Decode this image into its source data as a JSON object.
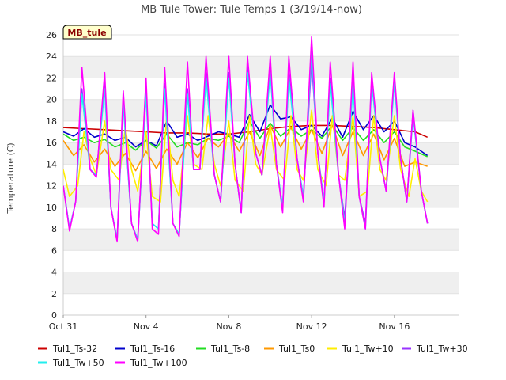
{
  "chart_data": {
    "type": "line",
    "title": "MB Tule Tower: Tule Temps 1 (3/19/14-now)",
    "ylabel": "Temperature (C)",
    "xlabel": "",
    "ylim": [
      0,
      26
    ],
    "yticks": [
      0,
      2,
      4,
      6,
      8,
      10,
      12,
      14,
      16,
      18,
      20,
      22,
      24,
      26
    ],
    "xlim": [
      0,
      19.1
    ],
    "xticks": [
      {
        "day": 0,
        "label": "Oct 31"
      },
      {
        "day": 4,
        "label": "Nov 4"
      },
      {
        "day": 8,
        "label": "Nov 8"
      },
      {
        "day": 12,
        "label": "Nov 12"
      },
      {
        "day": 16,
        "label": "Nov 16"
      }
    ],
    "x_unit_note": "",
    "site_tag": "MB_tule",
    "grid": "horizontal banded",
    "legend_position": "bottom",
    "series": [
      {
        "name": "Tul1_Ts-32",
        "color": "#cc0000",
        "x": [
          0,
          1,
          2,
          3,
          4,
          5,
          6,
          7,
          8,
          9,
          10,
          11,
          12,
          13,
          14,
          15,
          16,
          17,
          17.6
        ],
        "y": [
          17.4,
          17.3,
          17.2,
          17.1,
          17.0,
          16.9,
          16.9,
          16.8,
          16.8,
          17.0,
          17.3,
          17.5,
          17.6,
          17.6,
          17.5,
          17.4,
          17.2,
          17.0,
          16.5
        ]
      },
      {
        "name": "Tul1_Ts-16",
        "color": "#0000cc",
        "x": [
          0,
          0.5,
          1,
          1.5,
          2,
          2.5,
          3,
          3.5,
          4,
          4.5,
          5,
          5.5,
          6,
          6.5,
          7,
          7.5,
          8,
          8.5,
          9,
          9.5,
          10,
          10.5,
          11,
          11.5,
          12,
          12.5,
          13,
          13.5,
          14,
          14.5,
          15,
          15.5,
          16,
          16.5,
          17,
          17.6
        ],
        "y": [
          17.0,
          16.6,
          17.3,
          16.5,
          16.8,
          16.2,
          16.5,
          15.6,
          16.2,
          15.7,
          18.0,
          16.5,
          16.8,
          16.2,
          16.6,
          17.0,
          16.8,
          16.5,
          18.6,
          17.0,
          19.5,
          18.2,
          18.4,
          17.2,
          17.6,
          16.6,
          18.3,
          16.5,
          18.9,
          17.2,
          18.5,
          17.0,
          18.0,
          16.0,
          15.6,
          14.8
        ]
      },
      {
        "name": "Tul1_Ts-8",
        "color": "#22dd22",
        "x": [
          0,
          0.5,
          1,
          1.5,
          2,
          2.5,
          3,
          3.5,
          4,
          4.5,
          5,
          5.5,
          6,
          6.5,
          7,
          7.5,
          8,
          8.5,
          9,
          9.5,
          10,
          10.5,
          11,
          11.5,
          12,
          12.5,
          13,
          13.5,
          14,
          14.5,
          15,
          15.5,
          16,
          16.5,
          17,
          17.6
        ],
        "y": [
          16.8,
          16.2,
          16.5,
          16.0,
          16.3,
          15.6,
          16.0,
          15.3,
          16.2,
          15.5,
          16.8,
          15.6,
          16.0,
          15.8,
          16.4,
          16.2,
          16.6,
          16.0,
          18.0,
          16.4,
          17.8,
          16.6,
          17.4,
          16.6,
          17.2,
          16.4,
          17.6,
          16.2,
          17.4,
          16.2,
          17.2,
          16.0,
          17.0,
          15.6,
          15.2,
          14.7
        ]
      },
      {
        "name": "Tul1_Ts0",
        "color": "#ff9900",
        "x": [
          0,
          0.5,
          1,
          1.5,
          2,
          2.5,
          3,
          3.5,
          4,
          4.5,
          5,
          5.5,
          6,
          6.5,
          7,
          7.5,
          8,
          8.5,
          9,
          9.5,
          10,
          10.5,
          11,
          11.5,
          12,
          12.5,
          13,
          13.5,
          14,
          14.5,
          15,
          15.5,
          16,
          16.5,
          17,
          17.6
        ],
        "y": [
          16.2,
          14.8,
          15.8,
          14.2,
          15.4,
          13.8,
          15.0,
          13.4,
          15.2,
          13.6,
          15.4,
          14.0,
          16.0,
          14.6,
          16.4,
          15.6,
          16.8,
          15.2,
          17.0,
          14.8,
          17.6,
          15.6,
          17.4,
          15.4,
          17.2,
          15.0,
          17.6,
          14.8,
          17.0,
          14.8,
          16.8,
          14.4,
          16.4,
          13.8,
          14.2,
          13.8
        ]
      },
      {
        "name": "Tul1_Tw+10",
        "color": "#ffee00",
        "x": [
          0,
          0.3,
          0.7,
          1,
          1.3,
          1.6,
          2,
          2.3,
          2.7,
          3,
          3.3,
          3.6,
          4,
          4.3,
          4.7,
          5,
          5.3,
          5.6,
          6,
          6.3,
          6.7,
          7,
          7.3,
          7.6,
          8,
          8.3,
          8.7,
          9,
          9.3,
          9.6,
          10,
          10.3,
          10.7,
          11,
          11.3,
          11.6,
          12,
          12.3,
          12.7,
          13,
          13.3,
          13.6,
          14,
          14.3,
          14.7,
          15,
          15.3,
          15.6,
          16,
          16.3,
          16.7,
          17,
          17.3,
          17.6
        ],
        "y": [
          13.5,
          11.0,
          12.0,
          17.0,
          14.5,
          13.0,
          18.0,
          13.5,
          12.5,
          17.5,
          13.5,
          11.5,
          17.0,
          11.0,
          10.5,
          18.5,
          12.5,
          11.0,
          18.5,
          14.0,
          13.5,
          18.5,
          14.0,
          12.0,
          18.0,
          12.5,
          11.5,
          18.5,
          14.0,
          13.0,
          17.5,
          13.5,
          12.5,
          18.5,
          13.5,
          12.5,
          19.0,
          13.5,
          12.0,
          18.5,
          13.0,
          12.5,
          18.5,
          11.0,
          11.5,
          18.5,
          13.5,
          12.5,
          18.5,
          13.5,
          11.0,
          14.5,
          11.5,
          10.5
        ]
      },
      {
        "name": "Tul1_Tw+30",
        "color": "#9933ff",
        "x": [
          0,
          0.3,
          0.6,
          0.9,
          1.3,
          1.6,
          2,
          2.3,
          2.6,
          2.9,
          3.3,
          3.6,
          4,
          4.3,
          4.6,
          4.9,
          5.3,
          5.6,
          6,
          6.3,
          6.6,
          6.9,
          7.3,
          7.6,
          8,
          8.3,
          8.6,
          8.9,
          9.3,
          9.6,
          10,
          10.3,
          10.6,
          10.9,
          11.3,
          11.6,
          12,
          12.3,
          12.6,
          12.9,
          13.3,
          13.6,
          14,
          14.3,
          14.6,
          14.9,
          15.3,
          15.6,
          16,
          16.3,
          16.6,
          16.9,
          17.3,
          17.6
        ],
        "y": [
          12.0,
          8.0,
          10.5,
          21.0,
          13.5,
          13.0,
          21.5,
          10.0,
          7.0,
          20.0,
          8.5,
          7.0,
          21.0,
          8.5,
          8.0,
          21.5,
          8.5,
          7.5,
          21.0,
          13.5,
          13.5,
          22.5,
          13.0,
          10.5,
          22.5,
          14.0,
          9.5,
          23.0,
          15.0,
          13.0,
          23.0,
          14.0,
          10.0,
          22.5,
          14.5,
          11.0,
          23.5,
          15.0,
          10.5,
          22.0,
          13.0,
          9.0,
          22.0,
          11.0,
          8.5,
          22.0,
          14.5,
          11.5,
          22.0,
          14.5,
          10.5,
          19.0,
          11.5,
          8.5
        ]
      },
      {
        "name": "Tul1_Tw+50",
        "color": "#22eeee",
        "x": [
          0,
          0.3,
          0.6,
          0.9,
          1.3,
          1.6,
          2,
          2.3,
          2.6,
          2.9,
          3.3,
          3.6,
          4,
          4.3,
          4.6,
          4.9,
          5.3,
          5.6,
          6,
          6.3,
          6.6,
          6.9,
          7.3,
          7.6,
          8,
          8.3,
          8.6,
          8.9,
          9.3,
          9.6,
          10,
          10.3,
          10.6,
          10.9,
          11.3,
          11.6,
          12,
          12.3,
          12.6,
          12.9,
          13.3,
          13.6,
          14,
          14.3,
          14.6,
          14.9,
          15.3,
          15.6,
          16,
          16.3,
          16.6,
          16.9,
          17.3,
          17.6
        ],
        "y": [
          12.0,
          8.0,
          10.5,
          20.5,
          13.5,
          13.0,
          21.0,
          10.0,
          7.0,
          19.5,
          8.5,
          7.0,
          20.5,
          8.5,
          8.0,
          21.0,
          8.5,
          7.5,
          20.5,
          13.5,
          13.5,
          22.0,
          13.0,
          10.5,
          22.0,
          14.0,
          9.5,
          22.5,
          15.0,
          13.0,
          22.5,
          14.0,
          10.0,
          22.0,
          14.5,
          11.0,
          24.5,
          15.0,
          10.5,
          21.5,
          13.0,
          8.5,
          21.5,
          11.0,
          8.0,
          21.5,
          14.5,
          11.5,
          21.5,
          14.5,
          10.5,
          18.5,
          11.5,
          8.5
        ]
      },
      {
        "name": "Tul1_Tw+100",
        "color": "#ff00ff",
        "x": [
          0,
          0.3,
          0.6,
          0.9,
          1.3,
          1.6,
          2,
          2.3,
          2.6,
          2.9,
          3.3,
          3.6,
          4,
          4.3,
          4.6,
          4.9,
          5.3,
          5.6,
          6,
          6.3,
          6.6,
          6.9,
          7.3,
          7.6,
          8,
          8.3,
          8.6,
          8.9,
          9.3,
          9.6,
          10,
          10.3,
          10.6,
          10.9,
          11.3,
          11.6,
          12,
          12.3,
          12.6,
          12.9,
          13.3,
          13.6,
          14,
          14.3,
          14.6,
          14.9,
          15.3,
          15.6,
          16,
          16.3,
          16.6,
          16.9,
          17.3,
          17.6
        ],
        "y": [
          12.0,
          7.8,
          10.5,
          23.0,
          13.5,
          12.8,
          22.5,
          10.0,
          6.8,
          20.8,
          8.5,
          6.8,
          22.0,
          8.0,
          7.5,
          23.0,
          8.5,
          7.3,
          23.5,
          13.5,
          13.5,
          24.0,
          13.0,
          10.5,
          24.0,
          14.0,
          9.5,
          24.0,
          15.0,
          13.0,
          24.0,
          14.0,
          9.5,
          24.0,
          14.5,
          10.5,
          25.8,
          15.0,
          10.0,
          23.5,
          13.0,
          8.0,
          23.5,
          11.0,
          8.0,
          22.5,
          14.5,
          11.5,
          22.5,
          14.5,
          10.5,
          19.0,
          11.5,
          8.5
        ]
      }
    ]
  }
}
